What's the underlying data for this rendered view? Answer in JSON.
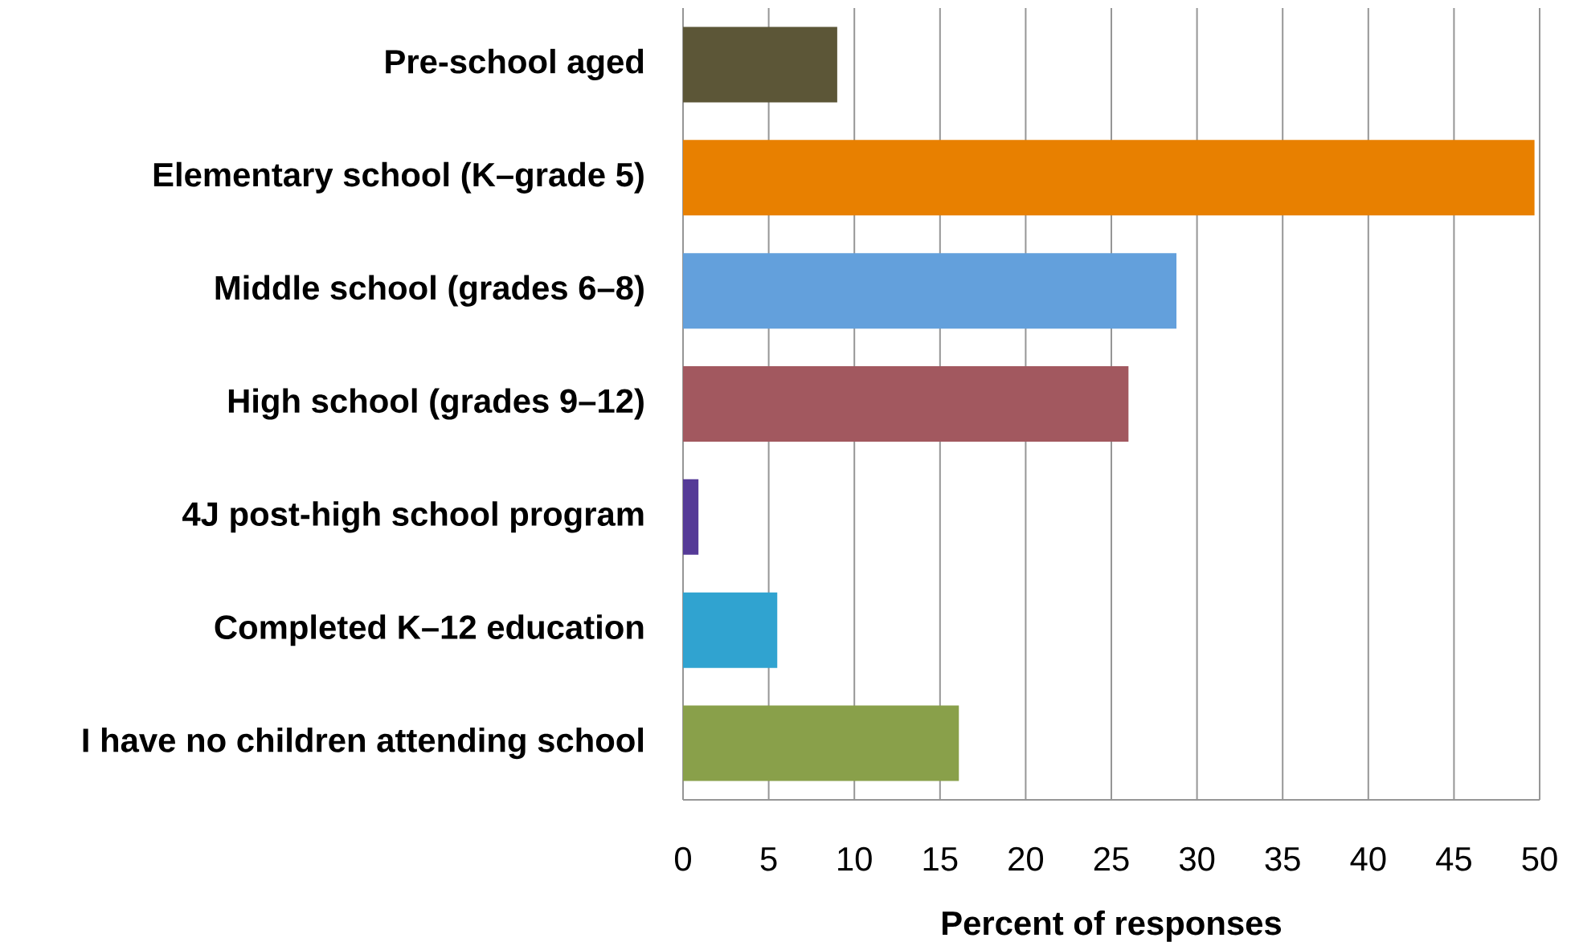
{
  "chart_data": {
    "type": "bar",
    "orientation": "horizontal",
    "xlabel": "Percent of responses",
    "categories": [
      "Pre-school aged",
      "Elementary school (K–grade 5)",
      "Middle school (grades 6–8)",
      "High school (grades 9–12)",
      "4J post-high school program",
      "Completed K–12 education",
      "I have no children attending school"
    ],
    "values": [
      9.0,
      49.7,
      28.8,
      26.0,
      0.9,
      5.5,
      16.1
    ],
    "colors": [
      "#5c5637",
      "#e88000",
      "#63a0dc",
      "#a2585f",
      "#553a97",
      "#30a3d0",
      "#89a04a"
    ],
    "xlim": [
      0,
      50
    ],
    "xticks": [
      0,
      5,
      10,
      15,
      20,
      25,
      30,
      35,
      40,
      45,
      50
    ],
    "grid": "x"
  }
}
